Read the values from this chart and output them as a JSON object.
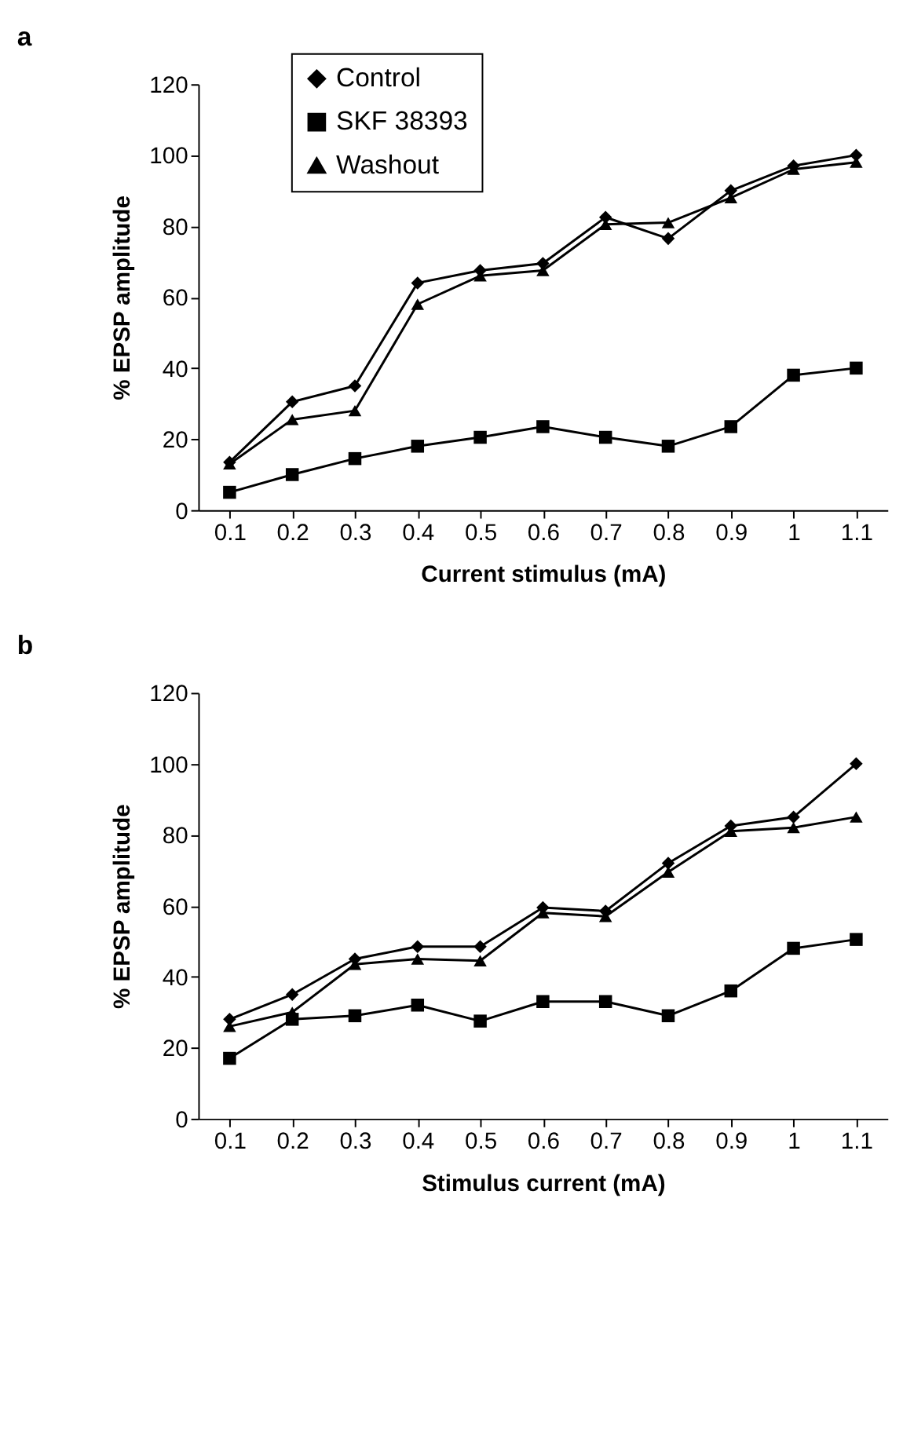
{
  "chart_data": [
    {
      "type": "line",
      "title": "a",
      "xlabel": "Current stimulus (mA)",
      "ylabel": "% EPSP amplitude",
      "categories": [
        "0.1",
        "0.2",
        "0.3",
        "0.4",
        "0.5",
        "0.6",
        "0.7",
        "0.8",
        "0.9",
        "1",
        "1.1"
      ],
      "series": [
        {
          "name": "Control",
          "color": "#000000",
          "marker": "diamond",
          "values": [
            13.5,
            30.5,
            35,
            64,
            67.5,
            69.5,
            82.5,
            76.5,
            90,
            97,
            100
          ]
        },
        {
          "name": "SKF 38393",
          "color": "#000000",
          "marker": "square",
          "values": [
            5,
            10,
            14.5,
            18,
            20.5,
            23.5,
            20.5,
            18,
            23.5,
            38,
            40
          ]
        },
        {
          "name": "Washout",
          "color": "#000000",
          "marker": "triangle",
          "values": [
            13,
            25.5,
            28,
            58,
            66,
            67.5,
            80.5,
            81,
            88,
            96,
            98
          ]
        }
      ],
      "ylim": [
        0,
        120
      ],
      "yticks": [
        0,
        20,
        40,
        60,
        80,
        100,
        120
      ],
      "grid": false,
      "legend": "top left",
      "line_style": "solid"
    },
    {
      "type": "line",
      "title": "b",
      "xlabel": "Stimulus current (mA)",
      "ylabel": "% EPSP amplitude",
      "categories": [
        "0.1",
        "0.2",
        "0.3",
        "0.4",
        "0.5",
        "0.6",
        "0.7",
        "0.8",
        "0.9",
        "1",
        "1.1"
      ],
      "series": [
        {
          "name": "Control",
          "color": "#000000",
          "marker": "diamond",
          "values": [
            28,
            35,
            45,
            48.5,
            48.5,
            59.5,
            58.5,
            72,
            82.5,
            85,
            100
          ]
        },
        {
          "name": "SKF 38393",
          "color": "#000000",
          "marker": "square",
          "values": [
            17,
            28,
            29,
            32,
            27.5,
            33,
            33,
            29,
            36,
            48,
            50.5
          ]
        },
        {
          "name": "Washout",
          "color": "#000000",
          "marker": "triangle",
          "values": [
            26,
            30,
            43.5,
            45,
            44.5,
            58,
            57,
            69.5,
            81,
            82,
            85
          ]
        }
      ],
      "ylim": [
        0,
        120
      ],
      "yticks": [
        0,
        20,
        40,
        60,
        80,
        100,
        120
      ],
      "grid": false,
      "legend": "top left",
      "line_style": "solid"
    }
  ]
}
